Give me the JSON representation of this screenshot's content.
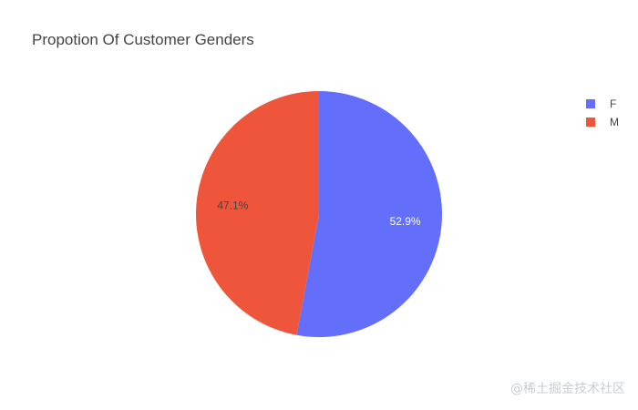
{
  "chart_data": {
    "type": "pie",
    "title": "Propotion Of Customer Genders",
    "slices": [
      {
        "label": "F",
        "value": 52.9,
        "text": "52.9%",
        "color": "#636efa",
        "text_color": "#ffffff"
      },
      {
        "label": "M",
        "value": 47.1,
        "text": "47.1%",
        "color": "#ef553b",
        "text_color": "#444444"
      }
    ],
    "legend_position": "top-right",
    "start_angle": "12 o'clock",
    "direction": "clockwise"
  },
  "watermark": "@稀土掘金技术社区"
}
